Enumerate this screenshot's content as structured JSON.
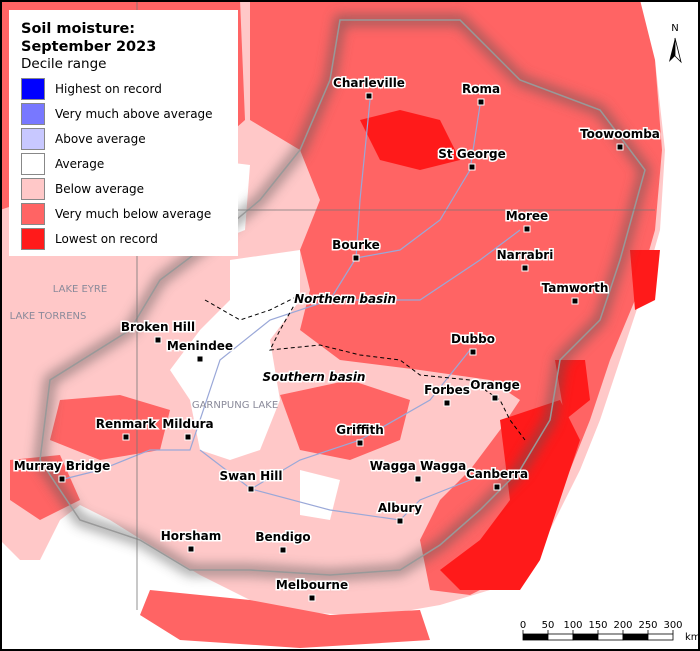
{
  "legend": {
    "title": "Soil moisture: September 2023",
    "subtitle": "Decile range",
    "items": [
      {
        "label": "Highest on record",
        "color": "#0000ff"
      },
      {
        "label": "Very much above average",
        "color": "#7878ff"
      },
      {
        "label": "Above average",
        "color": "#c8c8ff"
      },
      {
        "label": "Average",
        "color": "#ffffff"
      },
      {
        "label": "Below average",
        "color": "#ffc8c8"
      },
      {
        "label": "Very much below average",
        "color": "#ff6464"
      },
      {
        "label": "Lowest on record",
        "color": "#ff1a1a"
      }
    ]
  },
  "places": [
    "Charleville",
    "Roma",
    "Toowoomba",
    "St George",
    "Moree",
    "Bourke",
    "Narrabri",
    "Tamworth",
    "Broken Hill",
    "Menindee",
    "Dubbo",
    "Forbes",
    "Orange",
    "Griffith",
    "Renmark",
    "Mildura",
    "Murray Bridge",
    "Wagga Wagga",
    "Canberra",
    "Swan Hill",
    "Albury",
    "Horsham",
    "Bendigo",
    "Melbourne"
  ],
  "basins": [
    "Northern basin",
    "Southern basin"
  ],
  "lakes": [
    "LAKE EYRE",
    "LAKE TORRENS",
    "GARNPUNG LAKE"
  ],
  "scale_bar": {
    "ticks": [
      0,
      50,
      100,
      150,
      200,
      250,
      300
    ],
    "unit": "km"
  },
  "north": "N"
}
